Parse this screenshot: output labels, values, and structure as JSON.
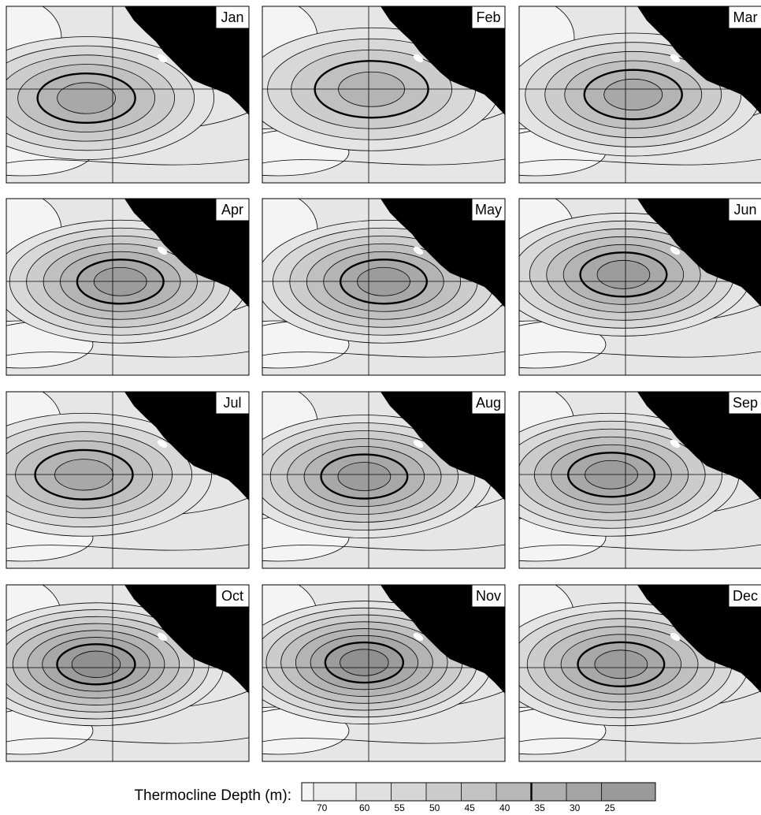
{
  "panels": [
    {
      "label": "Jan"
    },
    {
      "label": "Feb"
    },
    {
      "label": "Mar"
    },
    {
      "label": "Apr"
    },
    {
      "label": "May"
    },
    {
      "label": "Jun"
    },
    {
      "label": "Jul"
    },
    {
      "label": "Aug"
    },
    {
      "label": "Sep"
    },
    {
      "label": "Oct"
    },
    {
      "label": "Nov"
    },
    {
      "label": "Dec"
    }
  ],
  "legend": {
    "title": "Thermocline Depth (m):",
    "ticks": [
      70,
      60,
      55,
      50,
      45,
      40,
      35,
      30,
      25
    ]
  }
}
